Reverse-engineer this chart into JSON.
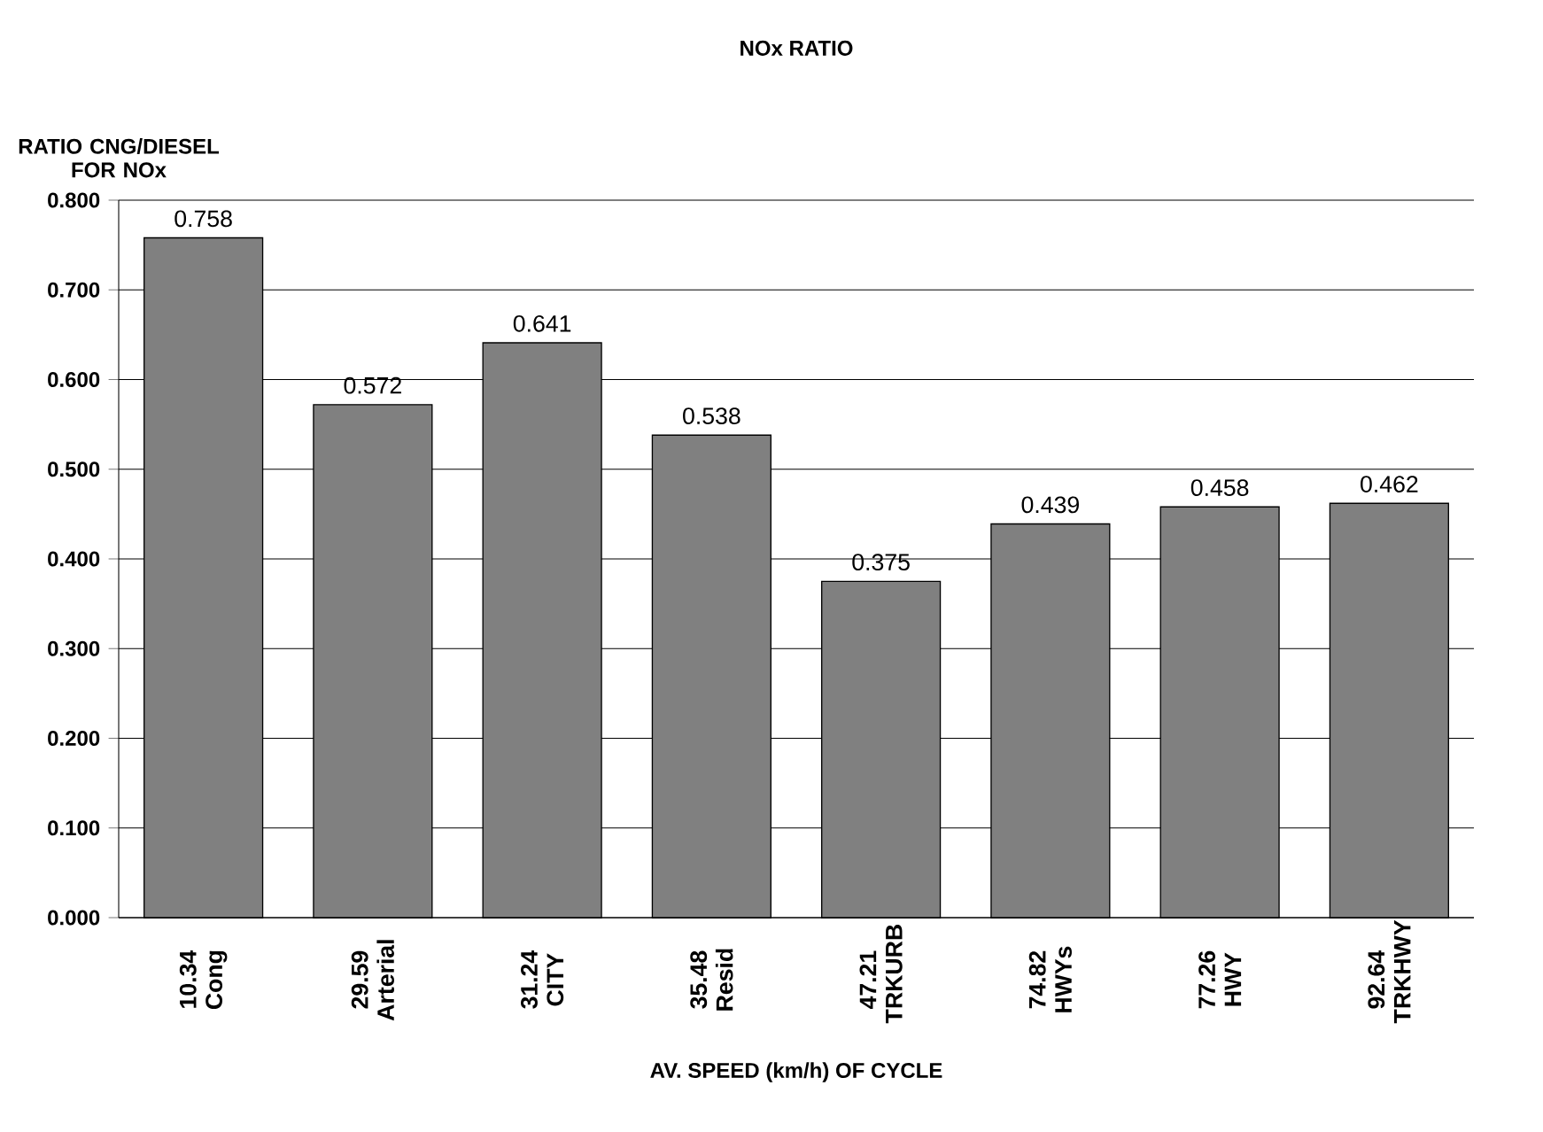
{
  "chart_data": {
    "type": "bar",
    "title": "NOx RATIO",
    "xlabel": "AV. SPEED (km/h) OF CYCLE",
    "ylabel": "RATIO CNG/DIESEL FOR NOx",
    "categories": [
      "10.34 Cong",
      "29.59 Arterial",
      "31.24 CITY",
      "35.48 Resid",
      "47.21 TRKURB",
      "74.82 HWYs",
      "77.26 HWY",
      "92.64 TRKHWY"
    ],
    "values": [
      0.758,
      0.572,
      0.641,
      0.538,
      0.375,
      0.439,
      0.458,
      0.462
    ],
    "color": "#808080",
    "data_labels": true,
    "grid": "y",
    "ylim": [
      0,
      0.8
    ],
    "yticks": [
      {
        "value": 0,
        "label": "0.000"
      },
      {
        "value": 0.1,
        "label": "0.100"
      },
      {
        "value": 0.2,
        "label": "0.200"
      },
      {
        "value": 0.3,
        "label": "0.300"
      },
      {
        "value": 0.4,
        "label": "0.400"
      },
      {
        "value": 0.5,
        "label": "0.500"
      },
      {
        "value": 0.6,
        "label": "0.600"
      },
      {
        "value": 0.7,
        "label": "0.700"
      },
      {
        "value": 0.8,
        "label": "0.800"
      }
    ]
  }
}
